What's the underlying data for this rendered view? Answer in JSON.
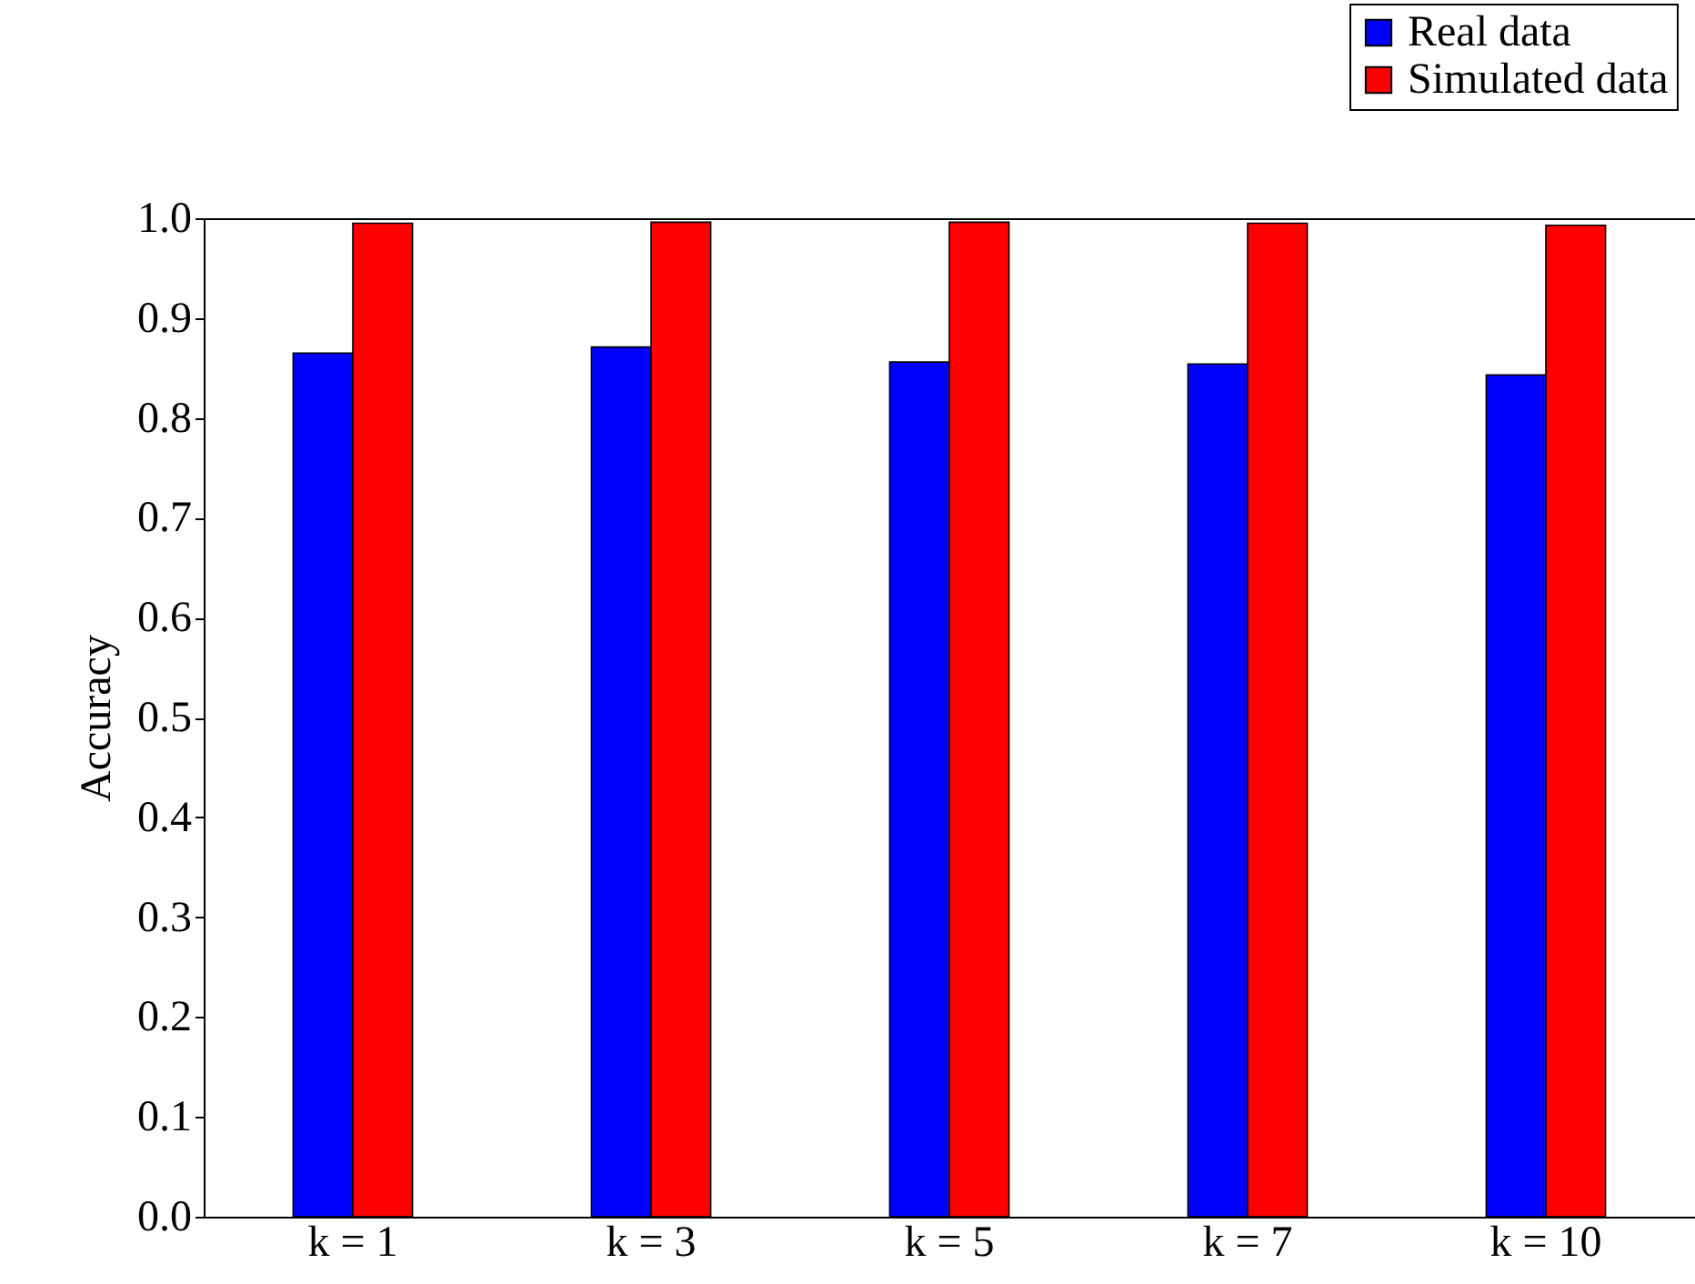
{
  "chart_data": {
    "type": "bar",
    "ylabel": "Accuracy",
    "categories": [
      "k = 1",
      "k = 3",
      "k = 5",
      "k = 7",
      "k = 10"
    ],
    "series": [
      {
        "name": "Real data",
        "color": "#0000ff",
        "values": [
          0.865,
          0.871,
          0.856,
          0.854,
          0.843
        ]
      },
      {
        "name": "Simulated data",
        "color": "#ff0000",
        "values": [
          0.995,
          0.996,
          0.996,
          0.995,
          0.993
        ]
      }
    ],
    "ylim": [
      0,
      1
    ],
    "yticks": [
      {
        "value": 0,
        "label": "0.0"
      },
      0.1,
      0.2,
      0.3,
      0.4,
      0.5,
      0.6,
      0.7,
      0.8,
      0.9,
      {
        "value": 1,
        "label": "1.0"
      }
    ],
    "grid": false,
    "legend": "top right"
  }
}
